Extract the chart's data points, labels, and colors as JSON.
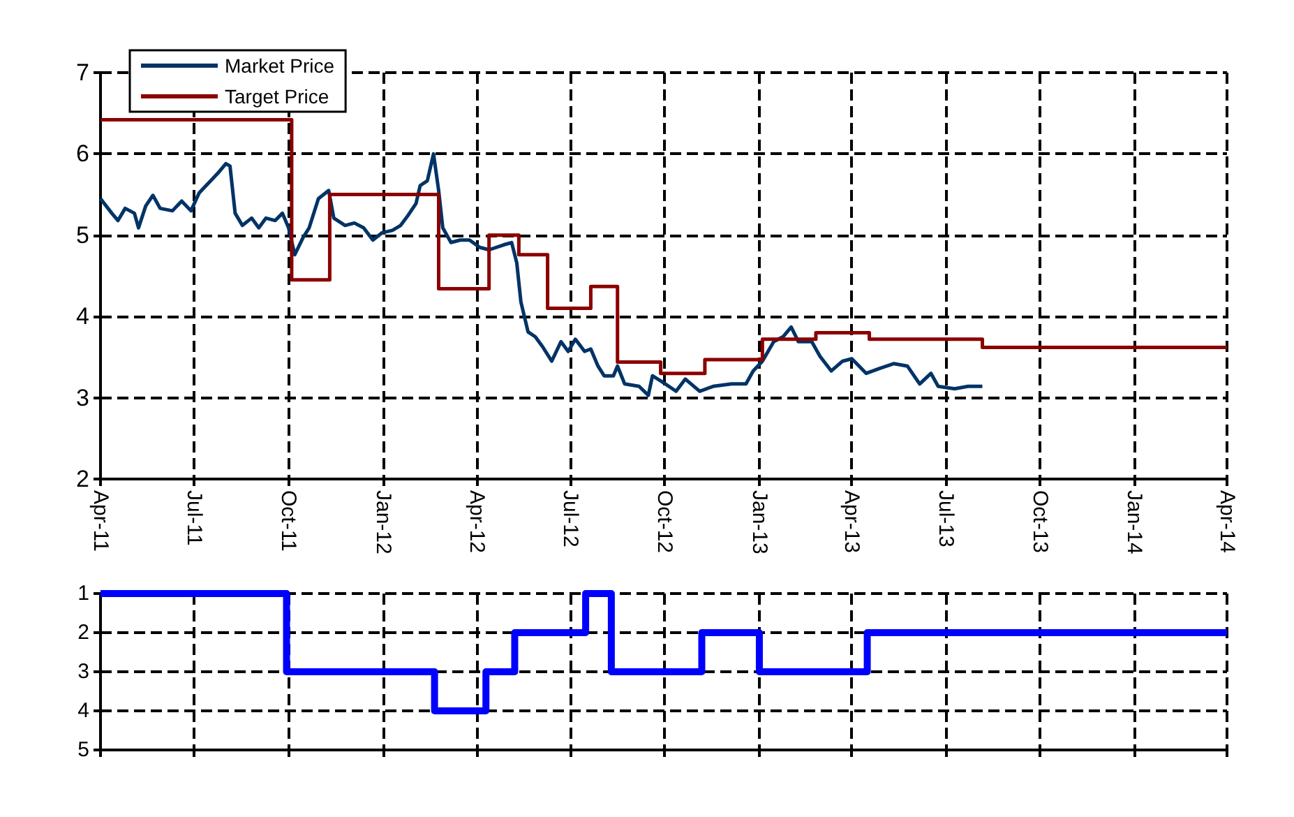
{
  "chart_data": [
    {
      "type": "line",
      "xlim": [
        "2011-04-01",
        "2014-04-01"
      ],
      "xticks": [
        {
          "value": "2011-04-01",
          "label": "Apr-11"
        },
        {
          "value": "2011-07-01",
          "label": "Jul-11"
        },
        {
          "value": "2011-10-01",
          "label": "Oct-11"
        },
        {
          "value": "2012-01-01",
          "label": "Jan-12"
        },
        {
          "value": "2012-04-01",
          "label": "Apr-12"
        },
        {
          "value": "2012-07-01",
          "label": "Jul-12"
        },
        {
          "value": "2012-10-01",
          "label": "Oct-12"
        },
        {
          "value": "2013-01-01",
          "label": "Jan-13"
        },
        {
          "value": "2013-04-01",
          "label": "Apr-13"
        },
        {
          "value": "2013-07-01",
          "label": "Jul-13"
        },
        {
          "value": "2013-10-01",
          "label": "Oct-13"
        },
        {
          "value": "2014-01-01",
          "label": "Jan-14"
        },
        {
          "value": "2014-04-01",
          "label": "Apr-14"
        }
      ],
      "ylim": [
        2,
        7
      ],
      "yticks": [
        2,
        3,
        4,
        5,
        6,
        7
      ],
      "grid": true,
      "legend": "top left",
      "marker": "none",
      "series": [
        {
          "name": "Market Price",
          "color": "#003366",
          "x": [
            "2011-04-01",
            "2011-04-12",
            "2011-04-18",
            "2011-04-25",
            "2011-05-04",
            "2011-05-08",
            "2011-05-15",
            "2011-05-22",
            "2011-05-29",
            "2011-06-10",
            "2011-06-19",
            "2011-06-28",
            "2011-07-06",
            "2011-07-15",
            "2011-07-24",
            "2011-08-01",
            "2011-08-05",
            "2011-08-10",
            "2011-08-17",
            "2011-08-26",
            "2011-09-02",
            "2011-09-09",
            "2011-09-18",
            "2011-09-25",
            "2011-10-01",
            "2011-10-07",
            "2011-10-15",
            "2011-10-21",
            "2011-10-30",
            "2011-11-09",
            "2011-11-14",
            "2011-11-25",
            "2011-12-04",
            "2011-12-13",
            "2011-12-22",
            "2011-12-31",
            "2012-01-10",
            "2012-01-18",
            "2012-01-25",
            "2012-02-02",
            "2012-02-06",
            "2012-02-13",
            "2012-02-19",
            "2012-02-24",
            "2012-02-28",
            "2012-03-07",
            "2012-03-16",
            "2012-03-25",
            "2012-04-04",
            "2012-04-13",
            "2012-04-27",
            "2012-05-05",
            "2012-05-10",
            "2012-05-14",
            "2012-05-21",
            "2012-05-28",
            "2012-06-04",
            "2012-06-13",
            "2012-06-22",
            "2012-06-29",
            "2012-07-06",
            "2012-07-15",
            "2012-07-21",
            "2012-07-28",
            "2012-08-03",
            "2012-08-12",
            "2012-08-16",
            "2012-08-23",
            "2012-09-06",
            "2012-09-15",
            "2012-09-19",
            "2012-09-28",
            "2012-10-12",
            "2012-10-21",
            "2012-11-04",
            "2012-11-17",
            "2012-12-05",
            "2012-12-19",
            "2012-12-26",
            "2013-01-04",
            "2013-01-15",
            "2013-01-24",
            "2013-02-01",
            "2013-02-08",
            "2013-02-21",
            "2013-03-01",
            "2013-03-12",
            "2013-03-23",
            "2013-04-01",
            "2013-04-15",
            "2013-04-28",
            "2013-05-12",
            "2013-05-25",
            "2013-06-06",
            "2013-06-17",
            "2013-06-24",
            "2013-07-10",
            "2013-07-23",
            "2013-08-06"
          ],
          "values": [
            5.45,
            5.27,
            5.18,
            5.33,
            5.27,
            5.09,
            5.36,
            5.49,
            5.33,
            5.3,
            5.42,
            5.3,
            5.52,
            5.64,
            5.76,
            5.88,
            5.85,
            5.27,
            5.12,
            5.21,
            5.09,
            5.21,
            5.18,
            5.27,
            5.09,
            4.76,
            4.97,
            5.09,
            5.45,
            5.55,
            5.21,
            5.12,
            5.15,
            5.09,
            4.94,
            5.03,
            5.06,
            5.12,
            5.24,
            5.39,
            5.61,
            5.67,
            6.0,
            5.55,
            5.09,
            4.91,
            4.94,
            4.94,
            4.85,
            4.82,
            4.88,
            4.91,
            4.66,
            4.18,
            3.81,
            3.75,
            3.63,
            3.45,
            3.69,
            3.57,
            3.72,
            3.57,
            3.6,
            3.39,
            3.27,
            3.27,
            3.39,
            3.17,
            3.14,
            3.03,
            3.27,
            3.2,
            3.08,
            3.23,
            3.08,
            3.14,
            3.17,
            3.17,
            3.33,
            3.45,
            3.69,
            3.75,
            3.87,
            3.69,
            3.69,
            3.51,
            3.33,
            3.45,
            3.48,
            3.3,
            3.36,
            3.42,
            3.39,
            3.17,
            3.3,
            3.14,
            3.11,
            3.14,
            3.14
          ]
        },
        {
          "name": "Target Price",
          "type": "step",
          "color": "#8b0000",
          "x": [
            "2011-04-01",
            "2011-10-04",
            "2011-11-10",
            "2012-02-24",
            "2012-04-13",
            "2012-05-12",
            "2012-06-09",
            "2012-07-21",
            "2012-08-16",
            "2012-09-27",
            "2012-11-09",
            "2013-01-04",
            "2013-02-25",
            "2013-04-18",
            "2013-08-06",
            "2014-04-01"
          ],
          "values": [
            6.42,
            4.45,
            5.5,
            4.34,
            5.0,
            4.76,
            4.1,
            4.37,
            3.44,
            3.3,
            3.47,
            3.72,
            3.8,
            3.72,
            3.62,
            3.62
          ]
        }
      ]
    },
    {
      "type": "step",
      "xlim": [
        "2011-04-01",
        "2014-04-01"
      ],
      "xticks": [
        {
          "value": "2011-04-01",
          "label": null
        },
        {
          "value": "2011-07-01",
          "label": null
        },
        {
          "value": "2011-10-01",
          "label": null
        },
        {
          "value": "2012-01-01",
          "label": null
        },
        {
          "value": "2012-04-01",
          "label": null
        },
        {
          "value": "2012-07-01",
          "label": null
        },
        {
          "value": "2012-10-01",
          "label": null
        },
        {
          "value": "2013-01-01",
          "label": null
        },
        {
          "value": "2013-04-01",
          "label": null
        },
        {
          "value": "2013-07-01",
          "label": null
        },
        {
          "value": "2013-10-01",
          "label": null
        },
        {
          "value": "2014-01-01",
          "label": null
        },
        {
          "value": "2014-04-01",
          "label": null
        }
      ],
      "ylim": [
        5,
        1
      ],
      "yticks": [
        1,
        2,
        3,
        4,
        5
      ],
      "grid": true,
      "tick_labels": "y",
      "marker": "none",
      "series": [
        {
          "color": "#0000ff",
          "x": [
            "2011-04-01",
            "2011-09-29",
            "2012-02-20",
            "2012-04-10",
            "2012-05-08",
            "2012-07-16",
            "2012-08-10",
            "2012-11-06",
            "2013-01-01",
            "2013-04-16",
            "2014-04-01"
          ],
          "values": [
            1,
            3,
            4,
            3,
            2,
            1,
            3,
            2,
            3,
            2,
            2
          ]
        }
      ]
    }
  ]
}
